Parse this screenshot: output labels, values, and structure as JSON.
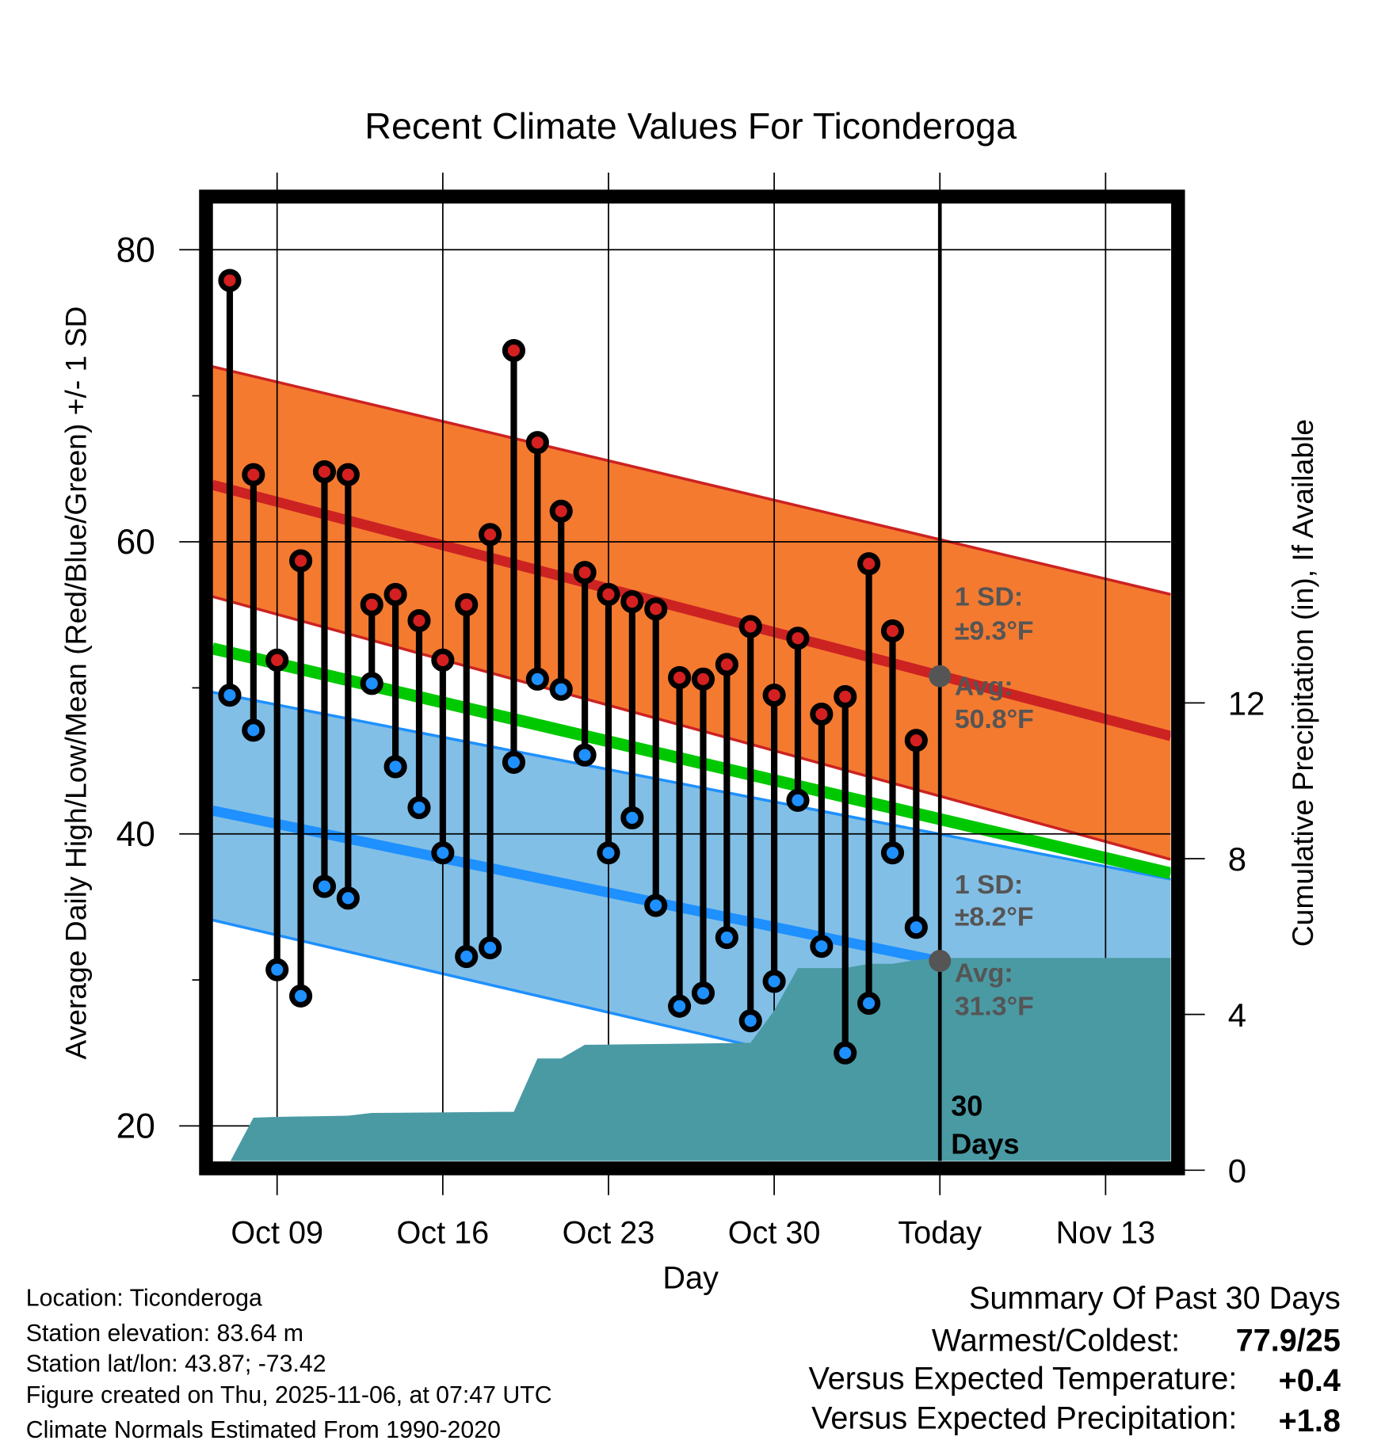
{
  "chart_data": {
    "type": "line",
    "title": "Recent Climate Values For Ticonderoga",
    "xlabel": "Day",
    "ylabel": "Average Daily High/Low/Mean (Red/Blue/Green) +/- 1 SD",
    "ylabel_right": "Cumulative Precipitation (in), If Available",
    "x_units": "days since Sep 30",
    "xlim": [
      6.27,
      46.75
    ],
    "ylim": [
      17.6,
      83.2
    ],
    "ylim_right": [
      0,
      15.5
    ],
    "xticks": [
      {
        "day": 9,
        "label": "Oct 09"
      },
      {
        "day": 16,
        "label": "Oct 16"
      },
      {
        "day": 23,
        "label": "Oct 23"
      },
      {
        "day": 30,
        "label": "Oct 30"
      },
      {
        "day": 37,
        "label": "Today"
      },
      {
        "day": 44,
        "label": "Nov 13"
      }
    ],
    "yticks": [
      {
        "value": 80,
        "label": "80"
      },
      {
        "value": 60,
        "label": "60"
      },
      {
        "value": 40,
        "label": "40"
      },
      {
        "value": 20,
        "label": "20"
      }
    ],
    "yminor": [
      70,
      50,
      30
    ],
    "yticks_right": [
      {
        "value": 0,
        "label": "0"
      },
      {
        "value": 4,
        "label": "4"
      },
      {
        "value": 8,
        "label": "8"
      },
      {
        "value": 12,
        "label": "12"
      }
    ],
    "grid": true,
    "daily": {
      "dates": [
        "Oct 07",
        "Oct 08",
        "Oct 09",
        "Oct 10",
        "Oct 11",
        "Oct 12",
        "Oct 13",
        "Oct 14",
        "Oct 15",
        "Oct 16",
        "Oct 17",
        "Oct 18",
        "Oct 19",
        "Oct 20",
        "Oct 21",
        "Oct 22",
        "Oct 23",
        "Oct 24",
        "Oct 25",
        "Oct 26",
        "Oct 27",
        "Oct 28",
        "Oct 29",
        "Oct 30",
        "Oct 31",
        "Nov 01",
        "Nov 02",
        "Nov 03",
        "Nov 04",
        "Nov 05"
      ],
      "x": [
        7,
        8,
        9,
        10,
        11,
        12,
        13,
        14,
        15,
        16,
        17,
        18,
        19,
        20,
        21,
        22,
        23,
        24,
        25,
        26,
        27,
        28,
        29,
        30,
        31,
        32,
        33,
        34,
        35,
        36
      ],
      "high": [
        77.9,
        64.6,
        51.9,
        58.7,
        64.8,
        64.6,
        55.7,
        56.4,
        54.6,
        51.9,
        55.7,
        60.5,
        73.1,
        66.8,
        62.1,
        57.9,
        56.4,
        55.9,
        55.4,
        50.7,
        50.6,
        51.6,
        54.2,
        49.5,
        53.4,
        48.2,
        49.4,
        58.5,
        53.9,
        46.4
      ],
      "low": [
        49.5,
        47.1,
        30.7,
        28.9,
        36.4,
        35.6,
        50.3,
        44.6,
        41.8,
        38.7,
        31.6,
        32.2,
        44.9,
        50.6,
        49.9,
        45.4,
        38.7,
        41.1,
        35.1,
        28.2,
        29.1,
        32.9,
        27.2,
        29.9,
        42.3,
        32.3,
        25.0,
        28.4,
        38.7,
        33.6
      ]
    },
    "normals": {
      "x": [
        6.27,
        46.75
      ],
      "avg_high": [
        63.9,
        46.7
      ],
      "avg_high_upper": [
        72.0,
        56.4
      ],
      "avg_high_lower": [
        56.25,
        38.25
      ],
      "avg_mean": [
        52.7,
        37.3
      ],
      "avg_low": [
        41.6,
        28.0
      ],
      "avg_low_upper": [
        49.7,
        36.9
      ],
      "avg_low_lower": [
        34.1,
        18.8
      ]
    },
    "precip_cumulative": {
      "x": [
        6.27,
        6.6,
        7,
        8,
        9,
        12,
        13,
        19,
        20,
        21,
        22,
        29,
        30,
        31,
        33,
        34,
        35,
        36,
        37,
        46.75
      ],
      "y": [
        0,
        0.05,
        0.2,
        1.35,
        1.37,
        1.4,
        1.47,
        1.5,
        2.87,
        2.87,
        3.22,
        3.27,
        4.1,
        5.19,
        5.19,
        5.3,
        5.3,
        5.4,
        5.45,
        5.45
      ]
    },
    "today": {
      "x": 37,
      "avg_high": 50.8,
      "avg_low": 31.3
    },
    "annotations": {
      "high_sd_label": "1 SD:",
      "high_sd_value": "±9.3°F",
      "high_avg_label": "Avg:",
      "high_avg_value": "50.8°F",
      "low_sd_label": "1 SD:",
      "low_sd_value": "±8.2°F",
      "low_avg_label": "Avg:",
      "low_avg_value": "31.3°F",
      "period_number": "30",
      "period_unit": "Days"
    },
    "colors": {
      "high_band": "#f47a30",
      "high_line": "#cc2222",
      "low_band": "#82bfe6",
      "low_line": "#1e90ff",
      "mean_line": "#00c800",
      "precip": "#4a9aa4",
      "high_dot": "#d42020",
      "low_dot": "#1e90ff",
      "today_dot": "#555555"
    }
  },
  "info": {
    "location": "Location: Ticonderoga",
    "elevation": "Station elevation: 83.64 m",
    "latlon": "Station lat/lon: 43.87; -73.42",
    "created": "Figure created on Thu, 2025-11-06, at 07:47 UTC",
    "normals": "Climate Normals Estimated From 1990-2020"
  },
  "summary": {
    "title": "Summary Of Past 30 Days",
    "warmest_label": "Warmest/Coldest:",
    "warmest_value": "77.9/25",
    "temp_label": "Versus Expected Temperature:",
    "temp_value": "+0.4",
    "temp_color": "#d42020",
    "precip_label": "Versus Expected Precipitation:",
    "precip_value": "+1.8",
    "precip_color": "#22c022"
  }
}
